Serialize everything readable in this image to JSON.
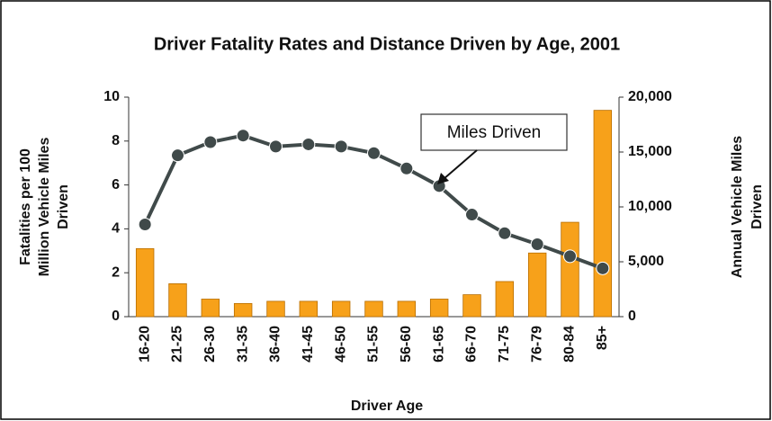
{
  "chart_data": {
    "type": "bar_line",
    "title": "Driver Fatality Rates and Distance Driven by Age, 2001",
    "ylabel": [
      "Fatalities per 100",
      "Million Vehicle Miles",
      "Driven"
    ],
    "y2label": [
      "Annual Vehicle Miles",
      "Driven"
    ],
    "xlabel": "Driver Age",
    "categories": [
      "16-20",
      "21-25",
      "26-30",
      "31-35",
      "36-40",
      "41-45",
      "46-50",
      "51-55",
      "56-60",
      "61-65",
      "66-70",
      "71-75",
      "76-79",
      "80-84",
      "85+"
    ],
    "series": [
      {
        "name": "Fatalities per 100 Million Vehicle Miles Driven",
        "type": "bar",
        "color": "#f7a11a",
        "axis": "y",
        "values": [
          3.1,
          1.5,
          0.8,
          0.6,
          0.7,
          0.7,
          0.7,
          0.7,
          0.7,
          0.8,
          1.0,
          1.6,
          2.9,
          4.3,
          9.4
        ]
      },
      {
        "name": "Miles Driven",
        "type": "line",
        "color": "#404a4a",
        "axis": "y2",
        "values": [
          8400,
          14700,
          15900,
          16500,
          15500,
          15700,
          15500,
          14900,
          13500,
          11900,
          9300,
          7600,
          6600,
          5500,
          4400
        ]
      }
    ],
    "annotation": "Miles Driven",
    "ylim": [
      0,
      10
    ],
    "yticks": [
      0,
      2,
      4,
      6,
      8,
      10
    ],
    "y2lim": [
      0,
      20000
    ],
    "y2ticks": [
      0,
      {
        "value": 5000,
        "label": "5,000"
      },
      {
        "value": 10000,
        "label": "10,000"
      },
      {
        "value": 15000,
        "label": "15,000"
      },
      {
        "value": 20000,
        "label": "20,000"
      }
    ],
    "grid": false
  }
}
